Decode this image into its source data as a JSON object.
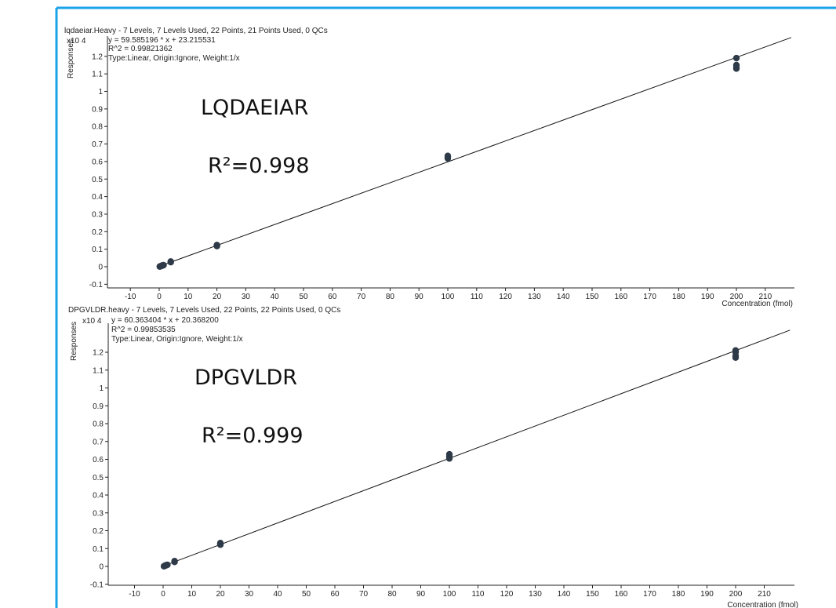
{
  "colors": {
    "frame": "#1aa3e8",
    "line": "#111111",
    "point": "#2e3a48",
    "axis": "#222222"
  },
  "chart_data": [
    {
      "type": "scatter",
      "header": "lqdaeiar.Heavy - 7 Levels, 7 Levels Used, 22 Points, 21 Points Used, 0 QCs",
      "equation": "y = 59.585196 * x  + 23.215531",
      "r2_text": "R^2 = 0.99821362",
      "fit_info": "Type:Linear, Origin:Ignore, Weight:1/x",
      "ylabel": "Responses",
      "yexp": "x10 4",
      "xlabel": "Concentration (fmol)",
      "annotation_name": "LQDAEIAR",
      "annotation_r2": "R²=0.998",
      "slope": 59.585196,
      "intercept": 23.215531,
      "xlim": [
        -14,
        219
      ],
      "ylim": [
        -0.13,
        1.25
      ],
      "x_ticks": [
        "-10",
        "0",
        "10",
        "20",
        "30",
        "40",
        "50",
        "60",
        "70",
        "80",
        "90",
        "100",
        "110",
        "120",
        "130",
        "140",
        "150",
        "160",
        "170",
        "180",
        "190",
        "200",
        "210"
      ],
      "y_ticks": [
        "-0.1",
        "0",
        "0.1",
        "0.2",
        "0.3",
        "0.4",
        "0.5",
        "0.6",
        "0.7",
        "0.8",
        "0.9",
        "1",
        "1.1",
        "1.2"
      ],
      "x": [
        0.2,
        0.3,
        0.5,
        0.8,
        1.0,
        1.2,
        1.5,
        4,
        4,
        20,
        20,
        20,
        100,
        100,
        100,
        200,
        200,
        200,
        200
      ],
      "y": [
        0.001,
        0.002,
        0.003,
        0.005,
        0.006,
        0.008,
        0.009,
        0.026,
        0.03,
        0.118,
        0.121,
        0.124,
        0.618,
        0.625,
        0.632,
        1.13,
        1.14,
        1.15,
        1.19
      ]
    },
    {
      "type": "scatter",
      "header": "DPGVLDR.heavy - 7 Levels, 7 Levels Used, 22 Points, 22 Points Used, 0 QCs",
      "equation": "y = 60.363404 * x  + 20.368200",
      "r2_text": "R^2 = 0.99853535",
      "fit_info": "Type:Linear, Origin:Ignore, Weight:1/x",
      "ylabel": "Responses",
      "yexp": "x10 4",
      "xlabel": "Concentration (fmol)",
      "annotation_name": "DPGVLDR",
      "annotation_r2": "R²=0.999",
      "slope": 60.363404,
      "intercept": 20.3682,
      "xlim": [
        -14,
        219
      ],
      "ylim": [
        -0.12,
        1.25
      ],
      "x_ticks": [
        "-10",
        "0",
        "10",
        "20",
        "30",
        "40",
        "50",
        "60",
        "70",
        "80",
        "90",
        "100",
        "110",
        "120",
        "130",
        "140",
        "150",
        "160",
        "170",
        "180",
        "190",
        "200",
        "210"
      ],
      "y_ticks": [
        "-0.1",
        "0",
        "0.1",
        "0.2",
        "0.3",
        "0.4",
        "0.5",
        "0.6",
        "0.7",
        "0.8",
        "0.9",
        "1",
        "1.1",
        "1.2"
      ],
      "x": [
        0.3,
        0.5,
        0.8,
        1.0,
        1.2,
        1.5,
        4,
        4,
        20,
        20,
        20,
        100,
        100,
        100,
        200,
        200,
        200,
        200
      ],
      "y": [
        0.001,
        0.003,
        0.005,
        0.006,
        0.008,
        0.009,
        0.025,
        0.03,
        0.122,
        0.127,
        0.131,
        0.605,
        0.615,
        0.628,
        1.17,
        1.18,
        1.2,
        1.21
      ]
    }
  ]
}
